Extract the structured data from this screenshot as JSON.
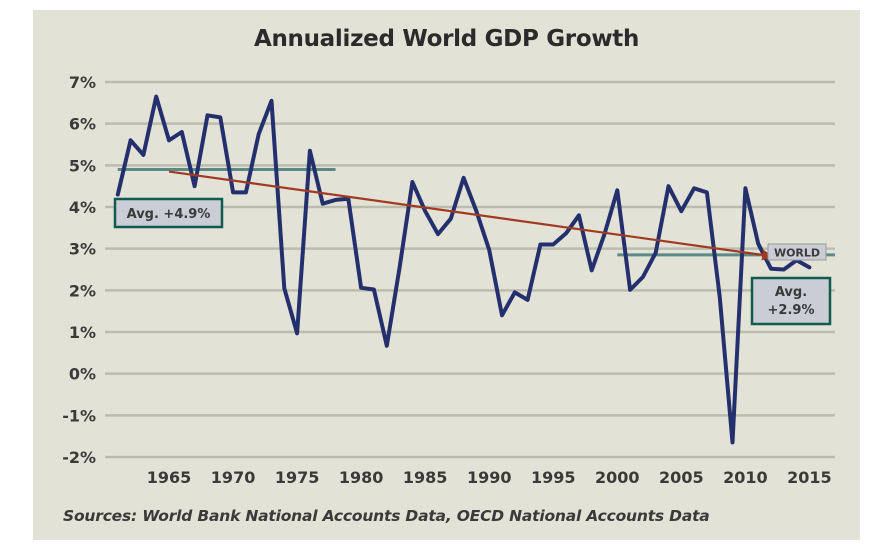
{
  "chart_data": {
    "type": "line",
    "title": "Annualized World GDP Growth",
    "source": "Sources: World Bank National Accounts Data, OECD National Accounts Data",
    "xlabel": "",
    "ylabel": "",
    "xlim": [
      1960,
      2017
    ],
    "ylim": [
      -2,
      7
    ],
    "x_ticks": [
      1965,
      1970,
      1975,
      1980,
      1985,
      1990,
      1995,
      2000,
      2005,
      2010,
      2015
    ],
    "y_ticks": [
      7,
      6,
      5,
      4,
      3,
      2,
      1,
      0,
      -1,
      -2
    ],
    "y_tick_labels": [
      "7%",
      "6%",
      "5%",
      "4%",
      "3%",
      "2%",
      "1%",
      "0%",
      "-1%",
      "-2%"
    ],
    "grid": "horizontal",
    "series": [
      {
        "name": "WORLD",
        "color": "#24306e",
        "x": [
          1961,
          1962,
          1963,
          1964,
          1965,
          1966,
          1967,
          1968,
          1969,
          1970,
          1971,
          1972,
          1973,
          1974,
          1975,
          1976,
          1977,
          1978,
          1979,
          1980,
          1981,
          1982,
          1983,
          1984,
          1985,
          1986,
          1987,
          1988,
          1989,
          1990,
          1991,
          1992,
          1993,
          1994,
          1995,
          1996,
          1997,
          1998,
          1999,
          2000,
          2001,
          2002,
          2003,
          2004,
          2005,
          2006,
          2007,
          2008,
          2009,
          2010,
          2011,
          2012,
          2013,
          2014,
          2015
        ],
        "y": [
          4.3,
          5.6,
          5.25,
          6.65,
          5.6,
          5.8,
          4.5,
          6.2,
          6.15,
          4.35,
          4.35,
          5.75,
          6.55,
          2.05,
          0.97,
          5.35,
          4.08,
          4.17,
          4.2,
          2.06,
          2.02,
          0.67,
          2.55,
          4.6,
          3.9,
          3.35,
          3.72,
          4.7,
          3.9,
          2.97,
          1.4,
          1.95,
          1.77,
          3.1,
          3.1,
          3.37,
          3.8,
          2.48,
          3.35,
          4.4,
          2.01,
          2.32,
          2.9,
          4.5,
          3.9,
          4.45,
          4.35,
          1.85,
          -1.65,
          4.45,
          3.12,
          2.52,
          2.5,
          2.72,
          2.55
        ]
      }
    ],
    "trend_line": {
      "color": "#a03a22",
      "from": {
        "x": 1965,
        "y": 4.85
      },
      "to": {
        "x": 2012,
        "y": 2.82
      }
    },
    "averages": [
      {
        "label": "Avg. +4.9%",
        "value": 4.9,
        "x_range": [
          1961,
          1978
        ],
        "line_color": "#5b8a87",
        "box_border": "#0f5b50"
      },
      {
        "label_lines": [
          "Avg.",
          "+2.9%"
        ],
        "value": 2.85,
        "x_range": [
          2000,
          2017
        ],
        "line_color": "#5b8a87",
        "box_border": "#0f5b50"
      }
    ],
    "series_label": "WORLD"
  },
  "colors": {
    "panel": "#e3e2d6",
    "grid": "#bcbcae",
    "text": "#3a3a3a",
    "box_fill": "#cacdd6"
  }
}
